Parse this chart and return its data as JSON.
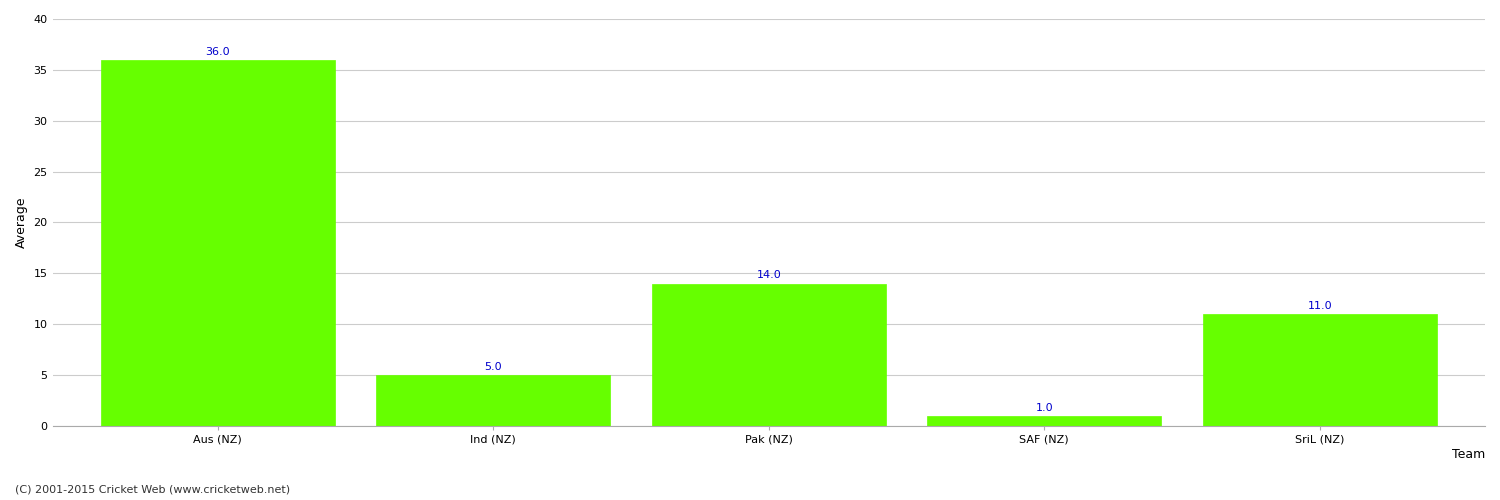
{
  "categories": [
    "Aus (NZ)",
    "Ind (NZ)",
    "Pak (NZ)",
    "SAF (NZ)",
    "SriL (NZ)"
  ],
  "values": [
    36.0,
    5.0,
    14.0,
    1.0,
    11.0
  ],
  "bar_color": "#66ff00",
  "bar_edge_color": "#66ff00",
  "value_label_color": "#0000cc",
  "value_label_fontsize": 8,
  "xlabel": "Team",
  "ylabel": "Average",
  "ylim": [
    0,
    40
  ],
  "yticks": [
    0,
    5,
    10,
    15,
    20,
    25,
    30,
    35,
    40
  ],
  "grid_color": "#cccccc",
  "background_color": "#ffffff",
  "footer_text": "(C) 2001-2015 Cricket Web (www.cricketweb.net)",
  "footer_fontsize": 8,
  "footer_color": "#333333",
  "tick_label_fontsize": 8,
  "axis_label_fontsize": 9,
  "bar_width": 0.85
}
